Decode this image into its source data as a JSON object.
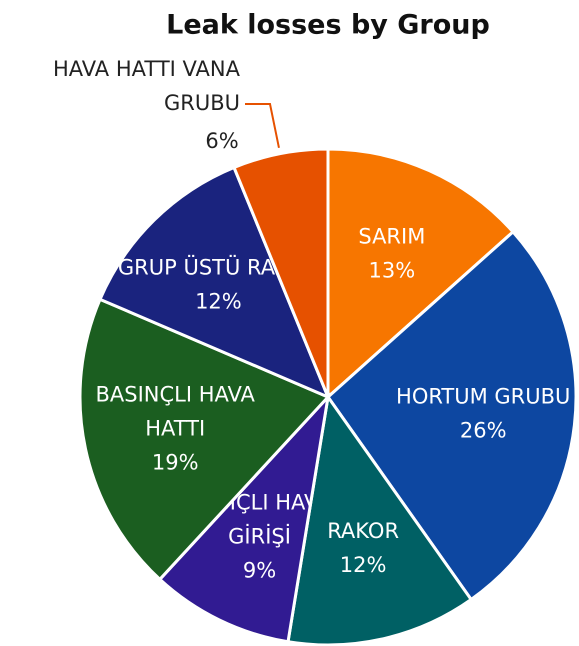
{
  "chart_data": {
    "type": "pie",
    "title": "Leak losses by Group",
    "categories": [
      "SARIM",
      "HORTUM GRUBU",
      "RAKOR",
      "BASIÇLI HAVA GİRİŞİ",
      "BASINÇLI HAVA HATTI",
      "GRUP ÜSTÜ RAKOR",
      "HAVA HATTI VANA GRUBU"
    ],
    "values": [
      13,
      26,
      12,
      9,
      19,
      12,
      6
    ],
    "value_labels": [
      "13%",
      "26%",
      "12%",
      "9%",
      "19%",
      "12%",
      "6%"
    ],
    "colors": [
      "#f77600",
      "#0d47a1",
      "#006064",
      "#311b92",
      "#1b5e20",
      "#1a237e",
      "#e65100"
    ]
  }
}
